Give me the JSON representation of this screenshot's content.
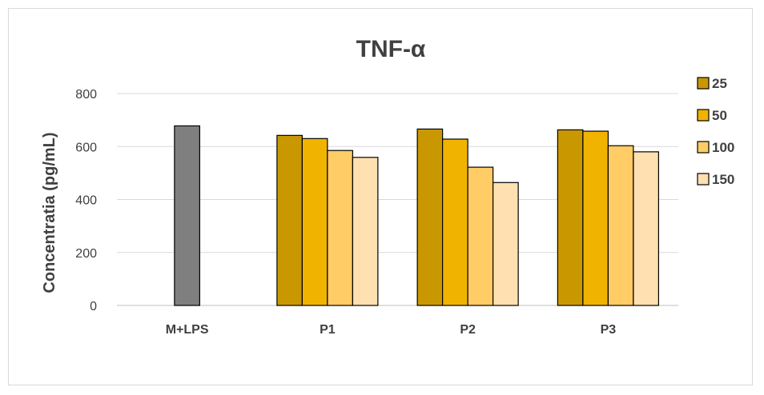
{
  "chart_data": {
    "type": "bar",
    "title": "TNF-α",
    "xlabel": "",
    "ylabel": "Concentratia (pg/mL)",
    "ylim": [
      0,
      800
    ],
    "yticks": [
      0,
      200,
      400,
      600,
      800
    ],
    "grid": true,
    "legend_position": "right",
    "categories": [
      "M+LPS",
      "P1",
      "P2",
      "P3"
    ],
    "control": {
      "category": "M+LPS",
      "value": 678,
      "color": "#7f7f7f"
    },
    "series": [
      {
        "name": "25",
        "color": "#c99800",
        "values": [
          null,
          642,
          666,
          663
        ]
      },
      {
        "name": "50",
        "color": "#f0b400",
        "values": [
          null,
          630,
          628,
          658
        ]
      },
      {
        "name": "100",
        "color": "#ffcc66",
        "values": [
          null,
          585,
          522,
          603
        ]
      },
      {
        "name": "150",
        "color": "#ffe0b0",
        "values": [
          null,
          559,
          464,
          580
        ]
      }
    ]
  }
}
